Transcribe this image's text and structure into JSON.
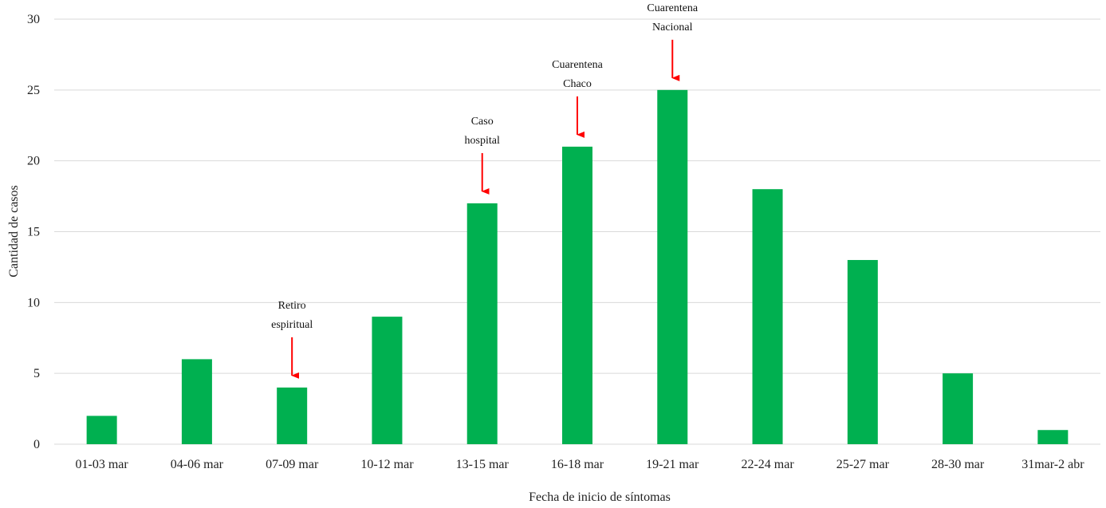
{
  "chart_data": {
    "type": "bar",
    "title": "",
    "xlabel": "Fecha de inicio de síntomas",
    "ylabel": "Cantidad de casos",
    "ylim": [
      0,
      30
    ],
    "yticks": [
      0,
      5,
      10,
      15,
      20,
      25,
      30
    ],
    "grid": true,
    "legend": "none",
    "categories": [
      "01-03 mar",
      "04-06 mar",
      "07-09 mar",
      "10-12 mar",
      "13-15 mar",
      "16-18 mar",
      "19-21 mar",
      "22-24 mar",
      "25-27 mar",
      "28-30 mar",
      "31mar-2 abr"
    ],
    "values": [
      2,
      6,
      4,
      9,
      17,
      21,
      25,
      18,
      13,
      5,
      1
    ],
    "annotations": [
      {
        "category": "07-09 mar",
        "lines": [
          "Retiro",
          "espiritual"
        ]
      },
      {
        "category": "13-15 mar",
        "lines": [
          "Caso",
          "hospital"
        ]
      },
      {
        "category": "16-18 mar",
        "lines": [
          "Cuarentena",
          "Chaco"
        ]
      },
      {
        "category": "19-21 mar",
        "lines": [
          "Cuarentena",
          "Nacional"
        ]
      }
    ]
  },
  "colors": {
    "bar": "#00b050",
    "arrow": "#ff0000",
    "grid": "#d9d9d9",
    "text": "#222222"
  }
}
